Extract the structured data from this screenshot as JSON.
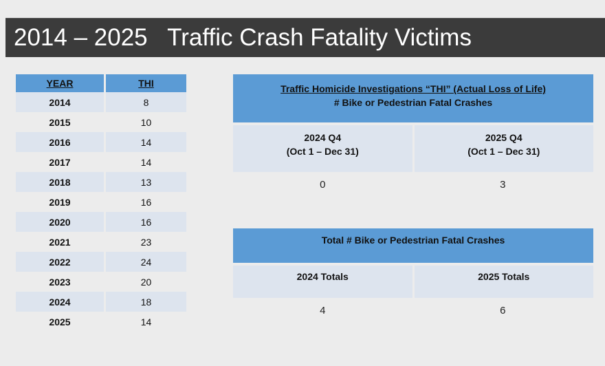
{
  "title": "2014 – 2025   Traffic Crash Fatality Victims",
  "year_table": {
    "headers": {
      "year": "YEAR",
      "thi": "THI"
    },
    "rows": [
      {
        "year": "2014",
        "thi": "8"
      },
      {
        "year": "2015",
        "thi": "10"
      },
      {
        "year": "2016",
        "thi": "14"
      },
      {
        "year": "2017",
        "thi": "14"
      },
      {
        "year": "2018",
        "thi": "13"
      },
      {
        "year": "2019",
        "thi": "16"
      },
      {
        "year": "2020",
        "thi": "16"
      },
      {
        "year": "2021",
        "thi": "23"
      },
      {
        "year": "2022",
        "thi": "24"
      },
      {
        "year": "2023",
        "thi": "20"
      },
      {
        "year": "2024",
        "thi": "18"
      },
      {
        "year": "2025",
        "thi": "14"
      }
    ]
  },
  "thi_table": {
    "header_line1": "Traffic Homicide Investigations “THI” (Actual Loss of Life)",
    "header_line2": "# Bike or Pedestrian Fatal Crashes",
    "col1": {
      "label": "2024 Q4",
      "range": "(Oct 1 – Dec 31)",
      "value": "0"
    },
    "col2": {
      "label": "2025 Q4",
      "range": "(Oct 1 – Dec 31)",
      "value": "3"
    }
  },
  "fatal_table": {
    "header": "Total # Bike or Pedestrian Fatal Crashes",
    "col1": {
      "label": "2024 Totals",
      "value": "4"
    },
    "col2": {
      "label": "2025 Totals",
      "value": "6"
    }
  }
}
